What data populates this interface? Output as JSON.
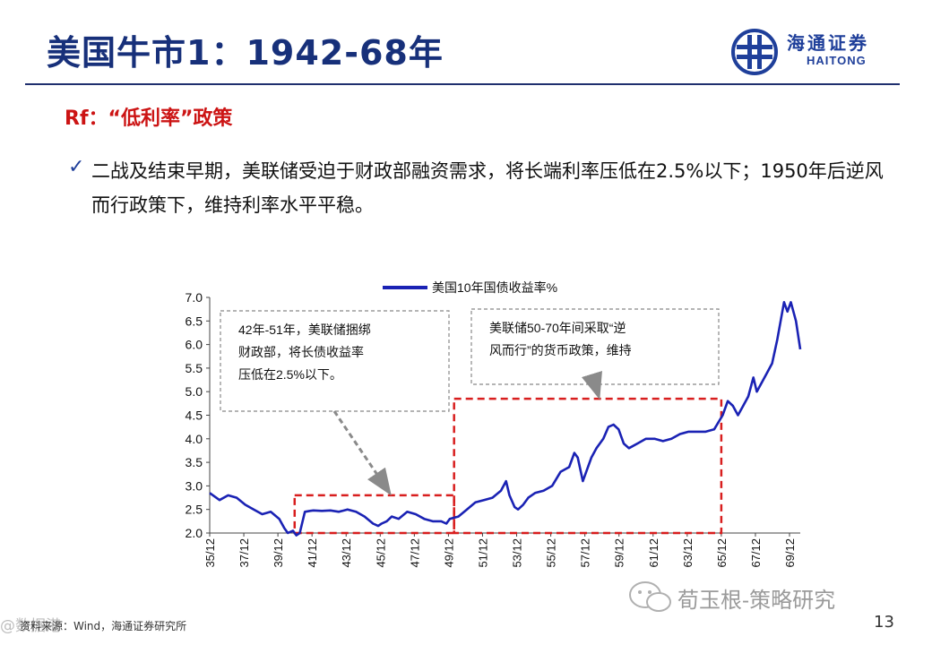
{
  "slide": {
    "title": "美国牛市1：1942-68年",
    "subtitle": "Rf：“低利率”政策",
    "bullet": "二战及结束早期，美联储受迫于财政部融资需求，将长端利率压低在2.5%以下；1950年后逆风而行政策下，维持利率水平平稳。",
    "bullet_icon": "checkmark-icon",
    "source": "资料来源：Wind，海通证券研究所",
    "page_number": "13",
    "watermark_left": "@数据港",
    "wechat_text": "荀玉根-策略研究",
    "brand_color": "#1f3f9a",
    "title_color": "#17307a",
    "accent_red": "#cc1414"
  },
  "logo": {
    "cn": "海通证券",
    "en": "HAITONG",
    "icon": "haitong-logo-icon"
  },
  "chart_data": {
    "type": "line",
    "series": [
      {
        "name": "美国10年国债收益率%",
        "color": "#1a22b4",
        "x": [
          1935.92,
          1936.5,
          1937.0,
          1937.5,
          1938.0,
          1938.5,
          1939.0,
          1939.5,
          1940.0,
          1940.3,
          1940.5,
          1940.8,
          1941.0,
          1941.2,
          1941.5,
          1941.8,
          1942.0,
          1942.5,
          1943.0,
          1943.5,
          1944.0,
          1944.5,
          1945.0,
          1945.5,
          1945.8,
          1946.0,
          1946.3,
          1946.6,
          1947.0,
          1947.5,
          1948.0,
          1948.5,
          1949.0,
          1949.5,
          1949.8,
          1950.0,
          1950.5,
          1951.0,
          1951.5,
          1952.0,
          1952.5,
          1953.0,
          1953.3,
          1953.5,
          1953.8,
          1954.0,
          1954.3,
          1954.6,
          1955.0,
          1955.5,
          1956.0,
          1956.5,
          1957.0,
          1957.3,
          1957.5,
          1957.8,
          1958.0,
          1958.3,
          1958.6,
          1959.0,
          1959.3,
          1959.6,
          1959.9,
          1960.2,
          1960.5,
          1961.0,
          1961.5,
          1962.0,
          1962.5,
          1963.0,
          1963.5,
          1964.0,
          1964.5,
          1965.0,
          1965.5,
          1966.0,
          1966.3,
          1966.6,
          1966.9,
          1967.2,
          1967.5,
          1967.8,
          1968.0,
          1968.3,
          1968.6,
          1968.9,
          1969.2,
          1969.4,
          1969.6,
          1969.8,
          1970.0,
          1970.3,
          1970.55
        ],
        "y": [
          2.85,
          2.7,
          2.8,
          2.75,
          2.6,
          2.5,
          2.4,
          2.45,
          2.3,
          2.1,
          2.0,
          2.05,
          1.95,
          2.0,
          2.45,
          2.47,
          2.48,
          2.47,
          2.48,
          2.45,
          2.5,
          2.45,
          2.35,
          2.2,
          2.15,
          2.2,
          2.25,
          2.35,
          2.3,
          2.45,
          2.4,
          2.3,
          2.25,
          2.25,
          2.2,
          2.3,
          2.35,
          2.5,
          2.65,
          2.7,
          2.75,
          2.9,
          3.1,
          2.8,
          2.55,
          2.5,
          2.6,
          2.75,
          2.85,
          2.9,
          3.0,
          3.3,
          3.4,
          3.7,
          3.6,
          3.1,
          3.3,
          3.6,
          3.8,
          4.0,
          4.25,
          4.3,
          4.2,
          3.9,
          3.8,
          3.9,
          4.0,
          4.0,
          3.95,
          4.0,
          4.1,
          4.15,
          4.15,
          4.15,
          4.2,
          4.5,
          4.8,
          4.7,
          4.5,
          4.7,
          4.9,
          5.3,
          5.0,
          5.2,
          5.4,
          5.6,
          6.1,
          6.5,
          6.9,
          6.7,
          6.9,
          6.5,
          5.9
        ]
      }
    ],
    "ylim": [
      2.0,
      7.0
    ],
    "xlim": [
      1935.92,
      1970.55
    ],
    "yticks": [
      "2.0",
      "2.5",
      "3.0",
      "3.5",
      "4.0",
      "4.5",
      "5.0",
      "5.5",
      "6.0",
      "6.5",
      "7.0"
    ],
    "xticks": [
      {
        "label": "35/12",
        "year": 1935.92
      },
      {
        "label": "37/12",
        "year": 1937.92
      },
      {
        "label": "39/12",
        "year": 1939.92
      },
      {
        "label": "41/12",
        "year": 1941.92
      },
      {
        "label": "43/12",
        "year": 1943.92
      },
      {
        "label": "45/12",
        "year": 1945.92
      },
      {
        "label": "47/12",
        "year": 1947.92
      },
      {
        "label": "49/12",
        "year": 1949.92
      },
      {
        "label": "51/12",
        "year": 1951.92
      },
      {
        "label": "53/12",
        "year": 1953.92
      },
      {
        "label": "55/12",
        "year": 1955.92
      },
      {
        "label": "57/12",
        "year": 1957.92
      },
      {
        "label": "59/12",
        "year": 1959.92
      },
      {
        "label": "61/12",
        "year": 1961.92
      },
      {
        "label": "63/12",
        "year": 1963.92
      },
      {
        "label": "65/12",
        "year": 1965.92
      },
      {
        "label": "67/12",
        "year": 1967.92
      },
      {
        "label": "69/12",
        "year": 1969.92
      }
    ],
    "grid": false,
    "legend": "top-center",
    "highlights": [
      {
        "x0": 1940.9,
        "x1": 1950.25,
        "y0": 2.0,
        "y1": 2.8,
        "color": "#d81e1e"
      },
      {
        "x0": 1950.25,
        "x1": 1965.92,
        "y0": 2.0,
        "y1": 4.85,
        "color": "#d81e1e"
      }
    ],
    "annotations": [
      {
        "id": "ann1",
        "lines": [
          "42年-51年，美联储捆绑",
          "财政部，将长债收益率",
          "压低在2.5%以下。"
        ],
        "target_x": 1946.4,
        "target_y": 2.85
      },
      {
        "id": "ann2",
        "lines": [
          "美联储50-70年间采取“逆",
          "风而行”的货币政策，维持"
        ],
        "target_x": 1958.7,
        "target_y": 4.9
      }
    ]
  }
}
